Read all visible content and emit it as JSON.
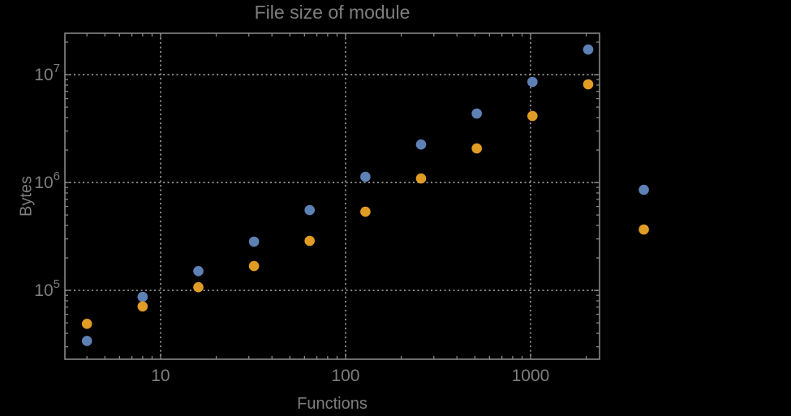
{
  "chart_data": {
    "type": "scatter",
    "title": "File size of module",
    "xlabel": "Functions",
    "ylabel": "Bytes",
    "x_scale": "log",
    "y_scale": "log",
    "x": [
      4,
      8,
      16,
      32,
      64,
      128,
      256,
      512,
      1024,
      2048,
      4096
    ],
    "series": [
      {
        "name": "blue-series",
        "color": "#5E81B5",
        "values": [
          34000,
          87000,
          151000,
          283000,
          555000,
          1130000,
          2250000,
          4360000,
          8560000,
          17100000,
          855000
        ]
      },
      {
        "name": "orange-series",
        "color": "#E09C24",
        "values": [
          49000,
          71000,
          107000,
          168000,
          288000,
          536000,
          1090000,
          2070000,
          4140000,
          8130000,
          367000
        ]
      }
    ],
    "x_ticks": {
      "values": [
        10,
        100,
        1000
      ],
      "labels": [
        "10",
        "100",
        "1000"
      ]
    },
    "y_ticks": {
      "values": [
        100000,
        1000000,
        10000000
      ],
      "base": "10",
      "exponents": [
        "5",
        "6",
        "7"
      ]
    },
    "xlim": [
      3.04,
      2360
    ],
    "ylim": [
      23000,
      24200000
    ],
    "grid": "dotted-at-major-ticks",
    "legend": "none",
    "plot_range_clipping": false,
    "marker_radius": 6.3
  },
  "style": {
    "background": "#000000",
    "frame_color": "#878787",
    "grid_color": "#8c8c8c",
    "text_color": "#7e7e7e"
  }
}
